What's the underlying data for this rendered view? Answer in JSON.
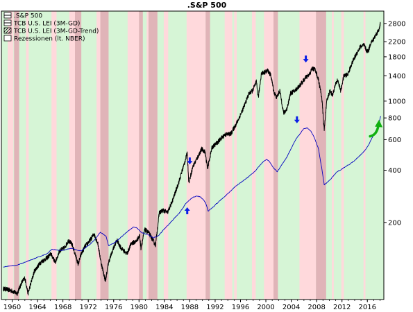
{
  "chart_data": {
    "type": "line",
    "title": ".S&P 500",
    "y_scale": "log",
    "xlim": [
      1958.3,
      2018.6
    ],
    "ylim": [
      72,
      3300
    ],
    "x_ticks": [
      1960,
      1964,
      1968,
      1972,
      1976,
      1980,
      1984,
      1988,
      1992,
      1996,
      2000,
      2004,
      2008,
      2012,
      2016
    ],
    "y_ticks": [
      200,
      400,
      600,
      800,
      1000,
      1400,
      1800,
      2200,
      2800
    ],
    "grid": false,
    "legend": {
      "position": "top-left",
      "entries": [
        {
          "label": ".S&P 500",
          "kind": "line",
          "color": "#000000"
        },
        {
          "label": "TCB U.S. LEI (3M-GD)",
          "kind": "line",
          "color": "#000000"
        },
        {
          "label": "TCB U.S. LEI (3M-GD-Trend)",
          "kind": "hatch",
          "color": "#000000"
        },
        {
          "label": "Rezessionen (lt. NBER)",
          "kind": "box",
          "color": "#ffffff"
        }
      ]
    },
    "colors": {
      "growth_zone": "#d6f5d6",
      "warning_zone": "#ffd9dc",
      "recession": "#e0b4b8",
      "sp500": "#000000",
      "lei": "#0000c0",
      "arrow_blue": "#0a1ee6",
      "arrow_green": "#10b010"
    },
    "warning_periods": [
      [
        1959.3,
        1960.2
      ],
      [
        1962.2,
        1962.6
      ],
      [
        1966.2,
        1967.0
      ],
      [
        1969.0,
        1969.9
      ],
      [
        1973.3,
        1973.9
      ],
      [
        1978.2,
        1980.0
      ],
      [
        1981.2,
        1981.5
      ],
      [
        1983.9,
        1984.6
      ],
      [
        1987.5,
        1990.5
      ],
      [
        1993.5,
        1994.7
      ],
      [
        1995.0,
        1995.4
      ],
      [
        1997.8,
        1998.4
      ],
      [
        1999.7,
        2001.2
      ],
      [
        2005.3,
        2007.9
      ],
      [
        2010.4,
        2010.7
      ],
      [
        2011.9,
        2012.3
      ],
      [
        2015.4,
        2015.7
      ]
    ],
    "recessions": [
      [
        1960.3,
        1961.1
      ],
      [
        1969.9,
        1970.9
      ],
      [
        1973.9,
        1975.2
      ],
      [
        1980.0,
        1980.6
      ],
      [
        1981.5,
        1982.9
      ],
      [
        1990.5,
        1991.2
      ],
      [
        2001.2,
        2001.9
      ],
      [
        2007.9,
        2009.5
      ]
    ],
    "series": [
      {
        "name": ".S&P 500",
        "color": "#000000",
        "x": [
          1958.6,
          1959.4,
          1960.2,
          1960.8,
          1961.5,
          1962.0,
          1962.5,
          1963.5,
          1964.5,
          1965.5,
          1966.1,
          1966.8,
          1967.5,
          1968.2,
          1968.9,
          1969.5,
          1970.4,
          1970.9,
          1971.5,
          1972.3,
          1972.9,
          1973.5,
          1974.0,
          1974.7,
          1975.2,
          1975.9,
          1976.5,
          1977.2,
          1978.1,
          1978.8,
          1979.5,
          1980.1,
          1980.3,
          1980.9,
          1981.5,
          1982.2,
          1982.6,
          1983.2,
          1983.8,
          1984.5,
          1985.3,
          1986.2,
          1987.0,
          1987.6,
          1987.85,
          1988.5,
          1989.3,
          1989.9,
          1990.4,
          1990.8,
          1991.5,
          1992.5,
          1993.5,
          1994.5,
          1995.5,
          1996.5,
          1997.3,
          1997.9,
          1998.5,
          1998.8,
          1999.3,
          1999.9,
          2000.3,
          2000.8,
          2001.3,
          2001.7,
          2002.2,
          2002.8,
          2003.3,
          2003.9,
          2004.6,
          2005.5,
          2006.3,
          2006.8,
          2007.3,
          2007.8,
          2008.3,
          2008.8,
          2009.2,
          2009.6,
          2010.1,
          2010.5,
          2010.9,
          2011.3,
          2011.8,
          2012.3,
          2012.9,
          2013.5,
          2014.2,
          2014.9,
          2015.5,
          2015.9,
          2016.2,
          2016.5,
          2016.9,
          2017.3,
          2017.8,
          2018.05
        ],
        "values": [
          83,
          82,
          80,
          78,
          90,
          96,
          78,
          105,
          118,
          125,
          132,
          118,
          138,
          142,
          158,
          148,
          115,
          132,
          146,
          158,
          172,
          152,
          118,
          92,
          118,
          140,
          158,
          142,
          132,
          152,
          155,
          168,
          142,
          182,
          175,
          158,
          148,
          228,
          235,
          228,
          268,
          335,
          420,
          500,
          340,
          420,
          480,
          530,
          510,
          410,
          540,
          585,
          640,
          650,
          760,
          920,
          1100,
          1150,
          1290,
          1050,
          1450,
          1470,
          1500,
          1400,
          1120,
          1050,
          1150,
          850,
          900,
          1110,
          1150,
          1250,
          1370,
          1410,
          1540,
          1520,
          1320,
          1060,
          680,
          1000,
          1150,
          1080,
          1220,
          1330,
          1150,
          1400,
          1420,
          1630,
          1850,
          2060,
          2100,
          1940,
          1960,
          2150,
          2250,
          2400,
          2570,
          2800
        ]
      },
      {
        "name": "TCB U.S. LEI (3M-GD)",
        "color": "#0000c0",
        "x": [
          1958.6,
          1959.5,
          1960.5,
          1961.5,
          1962.5,
          1963.5,
          1964.5,
          1965.5,
          1966.2,
          1967.0,
          1967.8,
          1968.6,
          1969.4,
          1970.2,
          1970.9,
          1971.5,
          1972.3,
          1973.2,
          1973.9,
          1974.8,
          1975.2,
          1976.0,
          1976.8,
          1977.6,
          1978.5,
          1979.1,
          1979.6,
          1980.3,
          1980.9,
          1981.5,
          1982.2,
          1983.0,
          1983.9,
          1984.8,
          1985.6,
          1986.5,
          1987.3,
          1987.9,
          1988.5,
          1989.2,
          1989.7,
          1990.1,
          1990.5,
          1990.9,
          1991.4,
          1992.3,
          1993.3,
          1994.3,
          1995.2,
          1996.2,
          1997.2,
          1998.2,
          1998.9,
          1999.6,
          2000.1,
          2000.6,
          2001.2,
          2001.8,
          2002.5,
          2003.3,
          2004.1,
          2004.8,
          2005.4,
          2005.9,
          2006.5,
          2007.1,
          2007.7,
          2008.3,
          2008.8,
          2009.2,
          2009.7,
          2010.3,
          2010.8,
          2011.3,
          2011.8,
          2012.5,
          2013.2,
          2014.0,
          2014.6,
          2015.2,
          2015.7,
          2016.2,
          2016.7,
          2017.3,
          2017.8,
          2018.1
        ],
        "values": [
          111,
          112,
          113,
          116,
          120,
          124,
          128,
          132,
          140,
          139,
          138,
          140,
          142,
          139,
          137,
          143,
          150,
          162,
          176,
          167,
          147,
          152,
          160,
          170,
          181,
          188,
          187,
          176,
          172,
          170,
          163,
          167,
          182,
          197,
          212,
          230,
          255,
          268,
          280,
          284,
          280,
          272,
          260,
          233,
          240,
          258,
          278,
          300,
          323,
          343,
          365,
          392,
          420,
          450,
          462,
          448,
          412,
          392,
          430,
          475,
          545,
          610,
          650,
          690,
          700,
          672,
          610,
          530,
          412,
          330,
          340,
          358,
          377,
          394,
          402,
          418,
          433,
          455,
          478,
          502,
          525,
          560,
          610,
          670,
          740,
          820
        ]
      }
    ],
    "annotations": [
      {
        "type": "arrow-down",
        "x": 1988.0,
        "y": 440,
        "color": "#0a1ee6"
      },
      {
        "type": "arrow-up",
        "x": 1987.6,
        "y": 240,
        "color": "#0a1ee6"
      },
      {
        "type": "arrow-down",
        "x": 2006.3,
        "y": 1700,
        "color": "#0a1ee6"
      },
      {
        "type": "arrow-down",
        "x": 2004.9,
        "y": 760,
        "color": "#0a1ee6"
      },
      {
        "type": "arrow-curve-up",
        "x": 2017.3,
        "y": 700,
        "color": "#10b010"
      }
    ]
  }
}
